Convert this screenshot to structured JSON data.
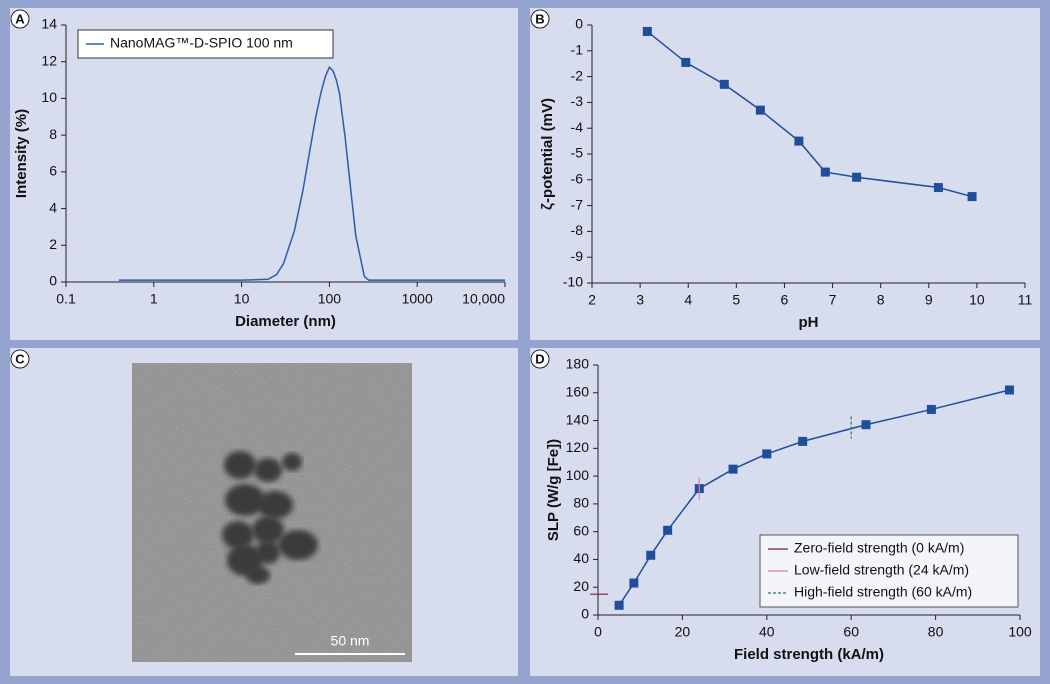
{
  "chart_data": [
    {
      "type": "line",
      "panel_label": "A",
      "xlabel": "Diameter (nm)",
      "ylabel": "Intensity (%)",
      "log_x": true,
      "xlim": [
        0.1,
        10000
      ],
      "xticks": [
        0.1,
        1,
        10,
        100,
        1000,
        {
          "value": 10000,
          "label": "10,000"
        }
      ],
      "ylim": [
        0,
        14
      ],
      "yticks": [
        0,
        2,
        4,
        6,
        8,
        10,
        12,
        14
      ],
      "x": [
        0.4,
        10,
        20,
        25,
        30,
        40,
        50,
        60,
        70,
        80,
        90,
        100,
        110,
        120,
        130,
        150,
        180,
        200,
        250,
        280,
        300,
        1000,
        10000
      ],
      "series": [
        {
          "name": "NanoMAG™-D-SPIO 100 nm",
          "color": "#2a5fa8",
          "values": [
            0.1,
            0.1,
            0.15,
            0.4,
            1.0,
            2.8,
            5.0,
            7.2,
            9.0,
            10.3,
            11.2,
            11.7,
            11.5,
            11.0,
            10.3,
            8.0,
            4.5,
            2.5,
            0.3,
            0.1,
            0.1,
            0.1,
            0.1
          ]
        }
      ],
      "legend": "upper left"
    },
    {
      "type": "line",
      "panel_label": "B",
      "xlabel": "pH",
      "ylabel": "ζ-potential (mV)",
      "markers": true,
      "color": "#1f4e9a",
      "xlim": [
        2,
        11
      ],
      "xticks": [
        2,
        3,
        4,
        5,
        6,
        7,
        8,
        9,
        10,
        11
      ],
      "ylim": [
        -10,
        0
      ],
      "yticks": [
        0,
        -1,
        -2,
        -3,
        -4,
        -5,
        -6,
        -7,
        -8,
        -9,
        -10
      ],
      "x": [
        3.15,
        3.95,
        4.75,
        5.5,
        6.3,
        6.85,
        7.5,
        9.2,
        9.9
      ],
      "values": [
        -0.25,
        -1.45,
        -2.3,
        -3.3,
        -4.5,
        -5.7,
        -5.9,
        -6.3,
        -6.65
      ]
    },
    {
      "type": "image",
      "panel_label": "C",
      "scale_bar_label": "50 nm"
    },
    {
      "type": "line",
      "panel_label": "D",
      "xlabel": "Field strength (kA/m)",
      "ylabel": "SLP (W/g [Fe])",
      "markers": true,
      "color": "#1f4e9a",
      "xlim": [
        0,
        100
      ],
      "xticks": [
        0,
        20,
        40,
        60,
        80,
        100
      ],
      "ylim": [
        0,
        180
      ],
      "yticks": [
        0,
        20,
        40,
        60,
        80,
        100,
        120,
        140,
        160,
        180
      ],
      "x": [
        5,
        8.5,
        12.5,
        16.5,
        24,
        32,
        40,
        48.5,
        63.5,
        79,
        97.5
      ],
      "values": [
        7,
        23,
        43,
        61,
        91,
        105,
        116,
        125,
        137,
        148,
        162
      ],
      "reference_lines": [
        {
          "name": "Zero-field strength (0 kA/m)",
          "color": "#8b1a3a",
          "style": "solid",
          "orientation": "horizontal",
          "x": 0,
          "y": 15
        },
        {
          "name": "Low-field strength (24 kA/m)",
          "color": "#e87fa0",
          "style": "solid",
          "orientation": "vertical",
          "x": 24,
          "y": 91
        },
        {
          "name": "High-field strength (60 kA/m)",
          "color": "#1f7a5a",
          "style": "dashed",
          "orientation": "vertical",
          "x": 60,
          "y": 135
        }
      ],
      "legend": "lower right"
    }
  ]
}
